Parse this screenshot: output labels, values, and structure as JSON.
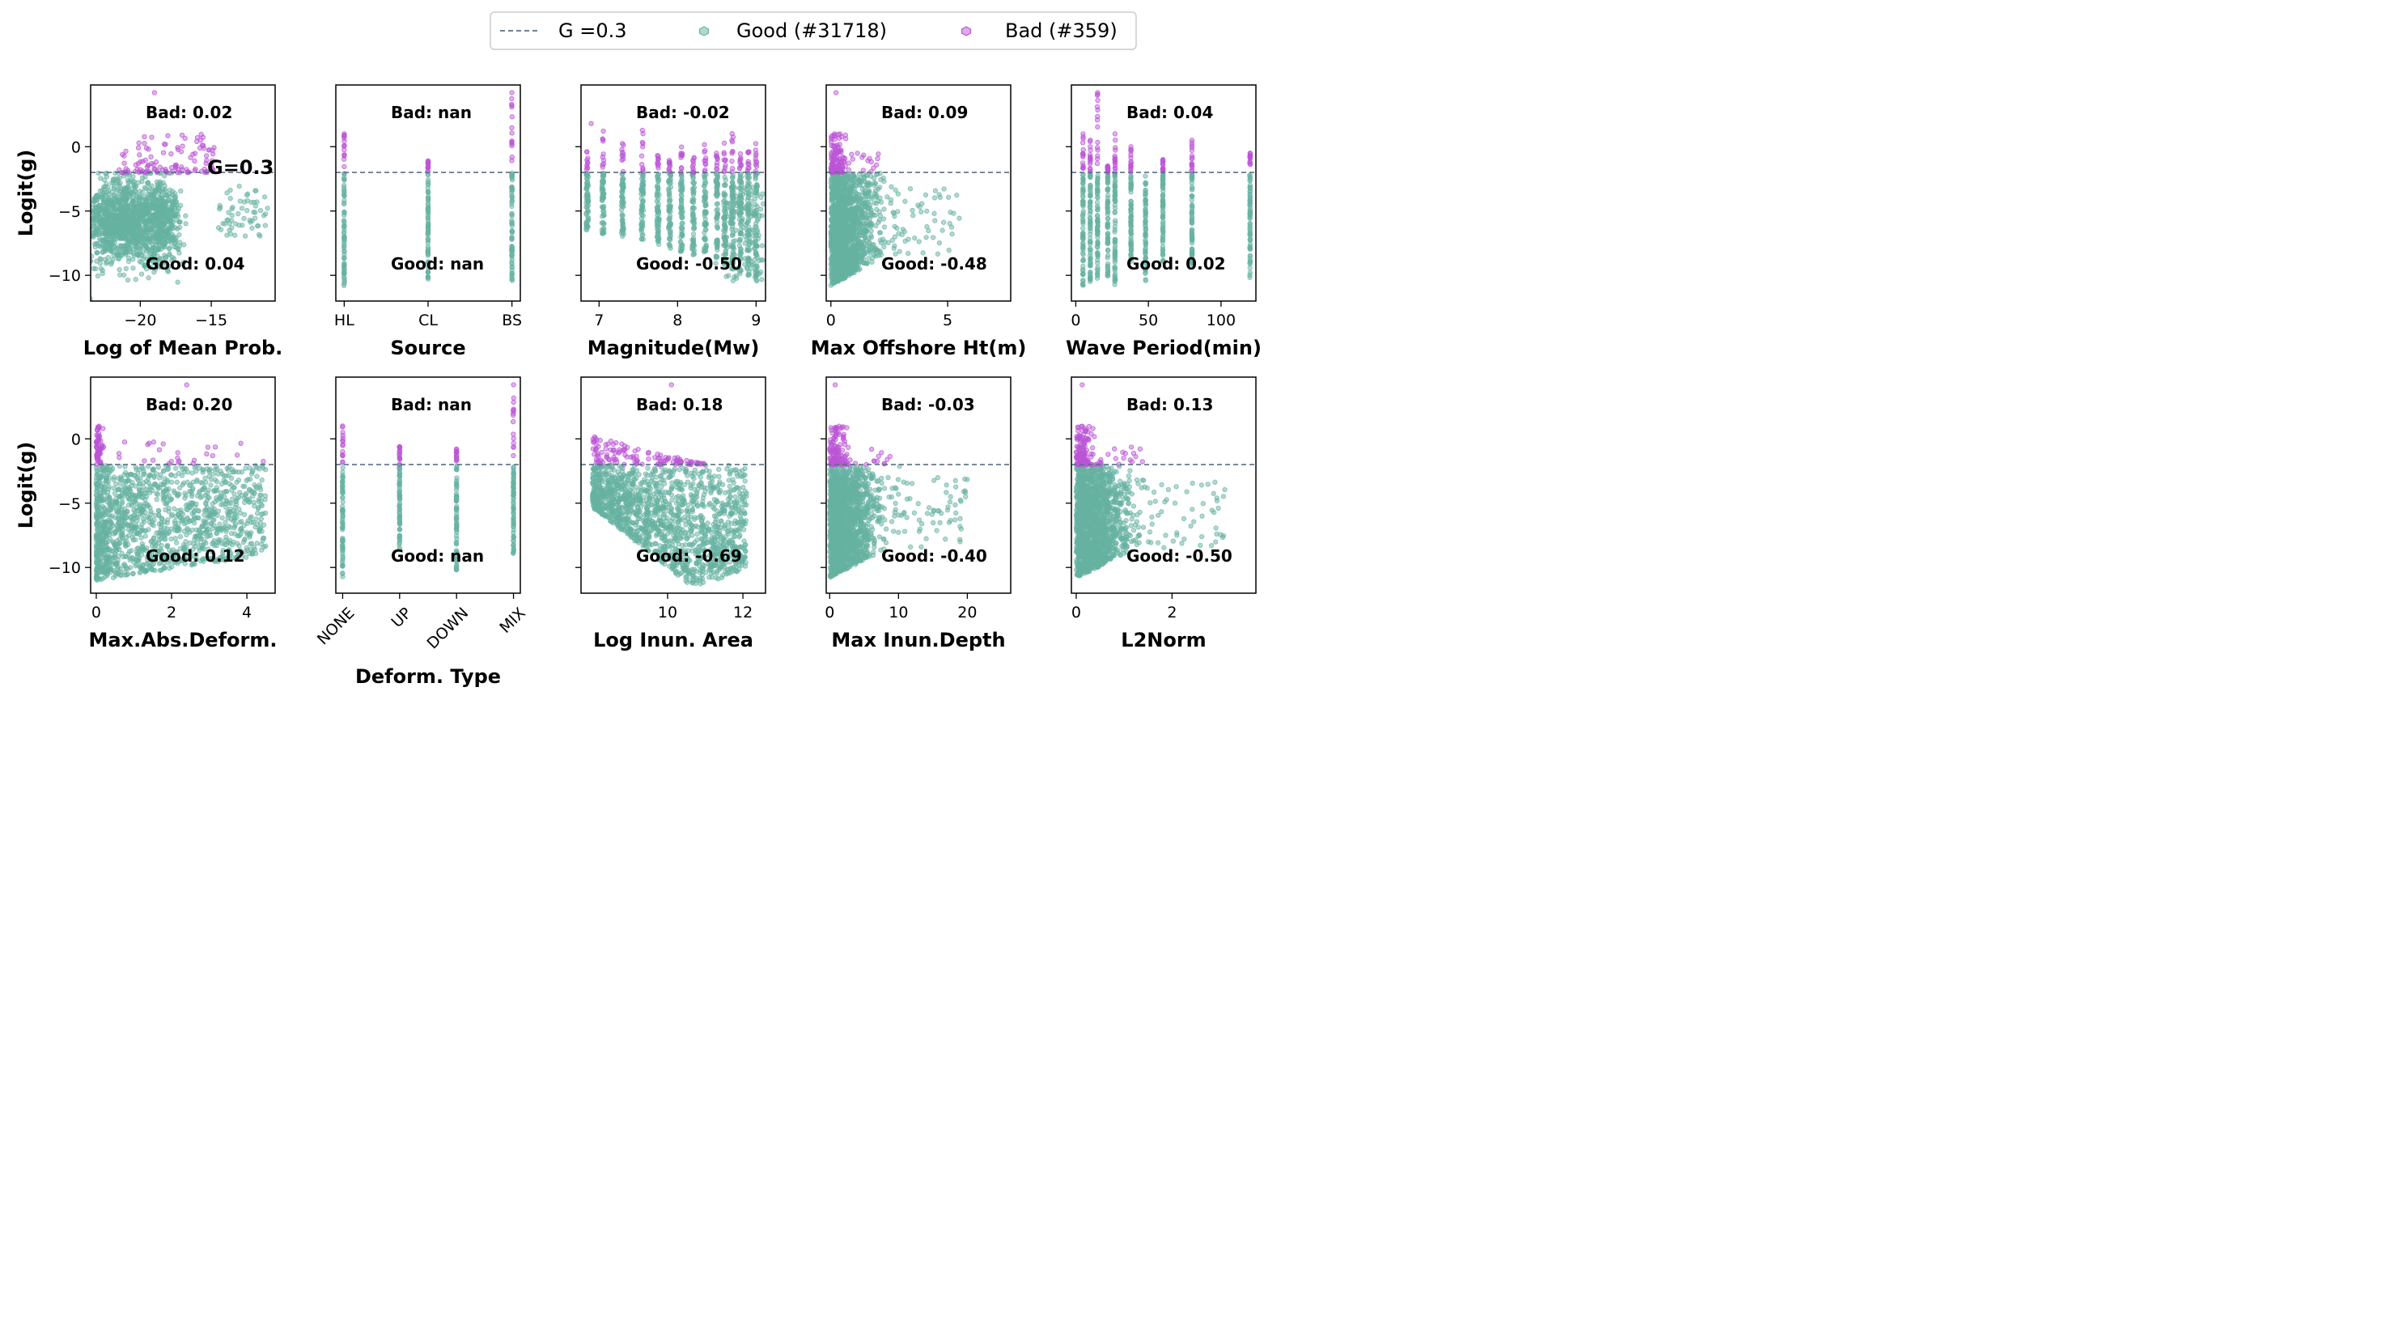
{
  "colors": {
    "good": "#66b2a1",
    "bad": "#bb55d6",
    "threshold": "#5a6f86"
  },
  "legend": {
    "placement": "top-right",
    "items": [
      {
        "label": "G =0.3",
        "kind": "line"
      },
      {
        "label": "Good (#31718)",
        "kind": "good"
      },
      {
        "label": "Bad (#359)",
        "kind": "bad"
      }
    ]
  },
  "threshold_label": "G=0.3",
  "ylabel": "Logit(g)",
  "chart_data": {
    "type": "scatter",
    "threshold_y": -2.0,
    "ylim": [
      -12.0,
      4.8
    ],
    "yticks": [
      {
        "v": 0,
        "label": "0"
      },
      {
        "v": -5,
        "label": "−5"
      },
      {
        "v": -10,
        "label": "−10"
      }
    ],
    "panels": [
      {
        "xlabel": "Log of Mean Prob.",
        "kind": "mean_prob",
        "xlim": [
          -23.5,
          -10.5
        ],
        "xticks": [
          {
            "v": -20,
            "label": "−20"
          },
          {
            "v": -15,
            "label": "−15"
          }
        ],
        "bad_corr": "Bad: 0.02",
        "good_corr": "Good: 0.04",
        "show_ylabel": true,
        "show_g": true
      },
      {
        "xlabel": "Source",
        "kind": "categorical",
        "xlim": [
          -0.1,
          2.1
        ],
        "cats": [
          0,
          1,
          2
        ],
        "cat_bad_top": [
          1.0,
          -1.1,
          4.2
        ],
        "cat_good_min": [
          -10.8,
          -10.3,
          -10.4
        ],
        "xticks": [
          {
            "v": 0,
            "label": "HL"
          },
          {
            "v": 1,
            "label": "CL"
          },
          {
            "v": 2,
            "label": "BS"
          }
        ],
        "bad_corr": "Bad: nan",
        "good_corr": "Good: nan"
      },
      {
        "xlabel": "Magnitude(Mw)",
        "kind": "magnitude",
        "xlim": [
          6.77,
          9.12
        ],
        "cats": [
          6.85,
          7.05,
          7.3,
          7.55,
          7.75,
          7.9,
          8.05,
          8.2,
          8.35,
          8.5,
          8.6,
          8.7,
          8.8,
          8.9,
          9.0
        ],
        "xticks": [
          {
            "v": 7,
            "label": "7"
          },
          {
            "v": 8,
            "label": "8"
          },
          {
            "v": 9,
            "label": "9"
          }
        ],
        "bad_corr": "Bad: -0.02",
        "good_corr": "Good: -0.50"
      },
      {
        "xlabel": "Max Offshore Ht(m)",
        "kind": "decay",
        "xlim": [
          -0.2,
          7.7
        ],
        "spread": 5.5,
        "xticks": [
          {
            "v": 0,
            "label": "0"
          },
          {
            "v": 5,
            "label": "5"
          }
        ],
        "bad_corr": "Bad: 0.09",
        "good_corr": "Good: -0.48"
      },
      {
        "xlabel": "Wave Period(min)",
        "kind": "categorical",
        "xlim": [
          -3,
          124
        ],
        "cats": [
          5,
          10,
          15,
          22,
          27,
          38,
          48,
          60,
          80,
          120
        ],
        "cat_bad_top": [
          1.0,
          0.5,
          4.2,
          -1.5,
          1.0,
          0.0,
          -2.0,
          -1.0,
          0.5,
          -0.5
        ],
        "cat_good_min": [
          -10.8,
          -10.5,
          -10.3,
          -10.2,
          -10.8,
          -9.0,
          -10.5,
          -9.0,
          -9.5,
          -10.2
        ],
        "xticks": [
          {
            "v": 0,
            "label": "0"
          },
          {
            "v": 50,
            "label": "50"
          },
          {
            "v": 100,
            "label": "100"
          }
        ],
        "bad_corr": "Bad: 0.04",
        "good_corr": "Good: 0.02"
      },
      {
        "xlabel": "Max.Abs.Deform.",
        "kind": "deform",
        "xlim": [
          -0.15,
          4.75
        ],
        "xticks": [
          {
            "v": 0,
            "label": "0"
          },
          {
            "v": 2,
            "label": "2"
          },
          {
            "v": 4,
            "label": "4"
          }
        ],
        "bad_corr": "Bad: 0.20",
        "good_corr": "Good: 0.12",
        "show_ylabel": true
      },
      {
        "xlabel": "Deform. Type",
        "kind": "categorical",
        "xlim": [
          -0.12,
          3.12
        ],
        "cats": [
          0,
          1,
          2,
          3
        ],
        "cat_bad_top": [
          1.0,
          -0.6,
          -0.8,
          4.2
        ],
        "cat_good_min": [
          -10.8,
          -8.8,
          -10.2,
          -9.3
        ],
        "xticks": [
          {
            "v": 0,
            "label": "NONE"
          },
          {
            "v": 1,
            "label": "UP"
          },
          {
            "v": 2,
            "label": "DOWN"
          },
          {
            "v": 3,
            "label": "MIX"
          }
        ],
        "rotate_ticks": true,
        "bad_corr": "Bad: nan",
        "good_corr": "Good: nan"
      },
      {
        "xlabel": "Log Inun. Area",
        "kind": "inun_area",
        "xlim": [
          7.7,
          12.6
        ],
        "xticks": [
          {
            "v": 10,
            "label": "10"
          },
          {
            "v": 12,
            "label": "12"
          }
        ],
        "bad_corr": "Bad: 0.18",
        "good_corr": "Good: -0.69"
      },
      {
        "xlabel": "Max Inun.Depth",
        "kind": "decay",
        "xlim": [
          -0.5,
          26.3
        ],
        "spread": 20,
        "xticks": [
          {
            "v": 0,
            "label": "0"
          },
          {
            "v": 10,
            "label": "10"
          },
          {
            "v": 20,
            "label": "20"
          }
        ],
        "bad_corr": "Bad: -0.03",
        "good_corr": "Good: -0.40"
      },
      {
        "xlabel": "L2Norm",
        "kind": "decay",
        "xlim": [
          -0.1,
          3.75
        ],
        "spread": 3.1,
        "xticks": [
          {
            "v": 0,
            "label": "0"
          },
          {
            "v": 2,
            "label": "2"
          }
        ],
        "bad_corr": "Bad: 0.13",
        "good_corr": "Good: -0.50"
      }
    ]
  }
}
